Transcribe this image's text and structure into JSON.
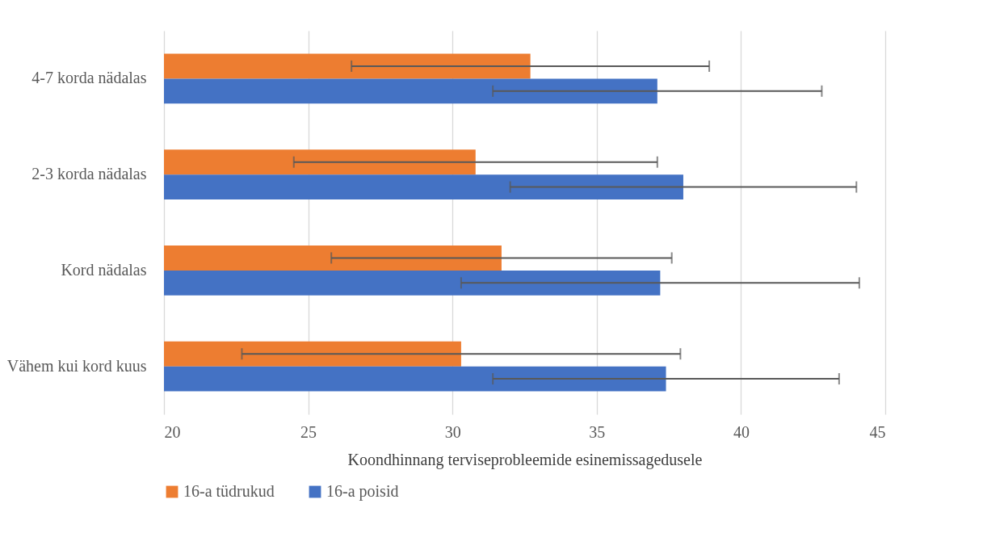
{
  "chart_data": {
    "type": "bar",
    "orientation": "horizontal",
    "categories": [
      "4-7 korda nädalas",
      "2-3 korda nädalas",
      "Kord nädalas",
      "Vähem kui kord kuus"
    ],
    "series": [
      {
        "name": "16-a tüdrukud",
        "color": "#ed7d31",
        "values": [
          32.7,
          30.8,
          31.7,
          30.3
        ],
        "errors": [
          6.2,
          6.3,
          5.9,
          7.6
        ]
      },
      {
        "name": "16-a poisid",
        "color": "#4472c4",
        "values": [
          37.1,
          38.0,
          37.2,
          37.4
        ],
        "errors": [
          5.7,
          6.0,
          6.9,
          6.0
        ]
      }
    ],
    "xlabel": "Koondhinnang terviseprobleemide esinemissagedusele",
    "xlim": [
      20,
      45
    ],
    "xticks": [
      20,
      25,
      30,
      35,
      40,
      45
    ],
    "grid": "x",
    "legend": "bottom"
  }
}
